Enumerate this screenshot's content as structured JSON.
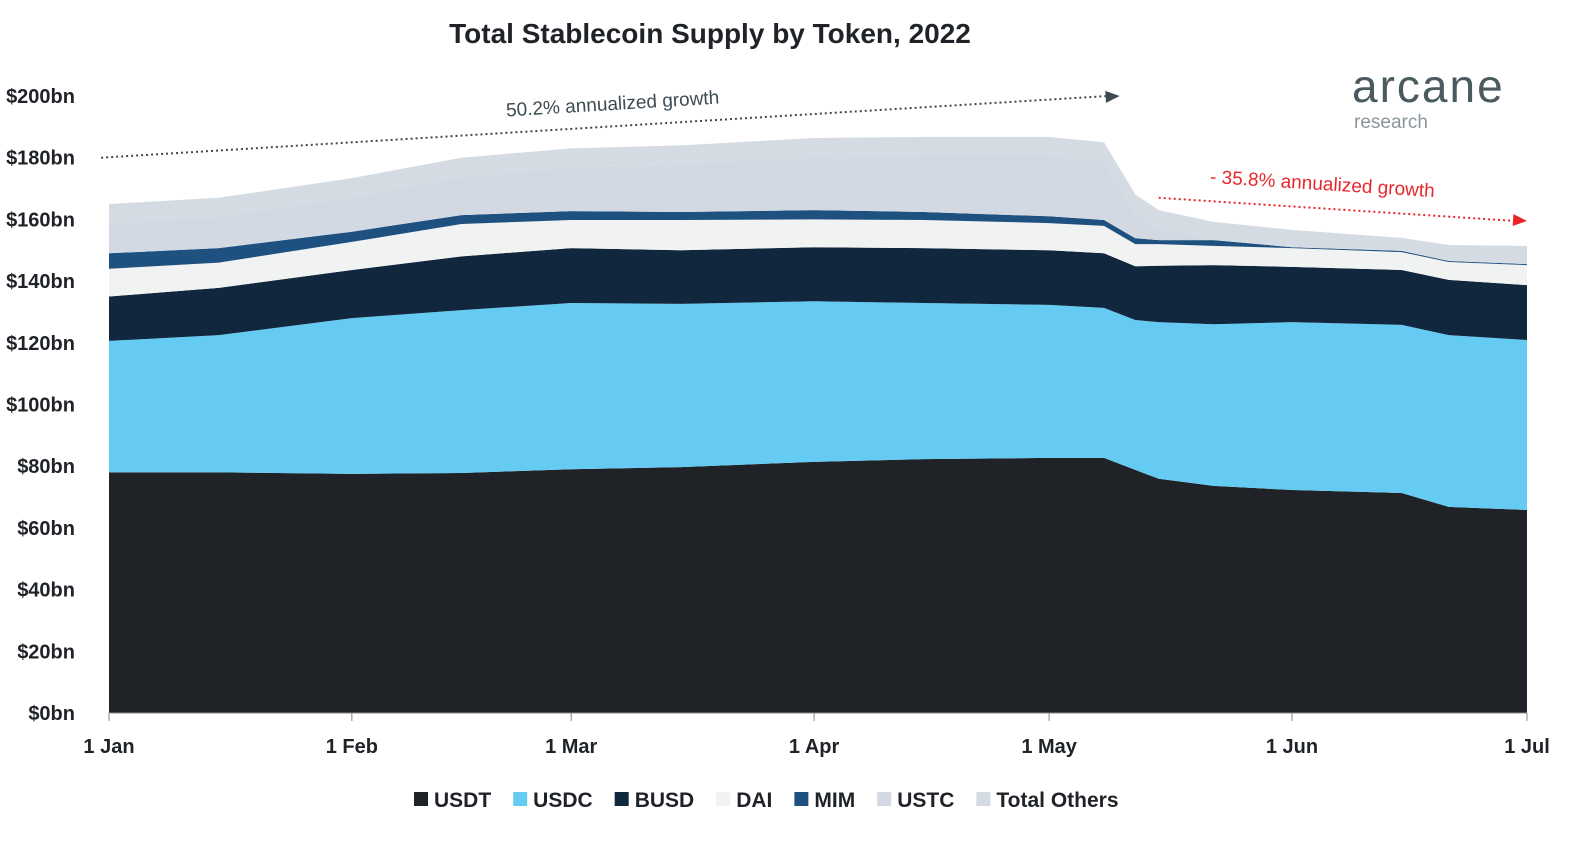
{
  "chart_data": {
    "type": "area",
    "stacked": true,
    "title": "Total Stablecoin Supply by Token, 2022",
    "xlabel": "",
    "ylabel": "",
    "ylim": [
      0,
      200
    ],
    "xlim": [
      "2022-01-01",
      "2022-07-01"
    ],
    "y_ticks": [
      "$0bn",
      "$20bn",
      "$40bn",
      "$60bn",
      "$80bn",
      "$100bn",
      "$120bn",
      "$140bn",
      "$160bn",
      "$180bn",
      "$200bn"
    ],
    "y_tick_values": [
      0,
      20,
      40,
      60,
      80,
      100,
      120,
      140,
      160,
      180,
      200
    ],
    "x_ticks": [
      {
        "label": "1 Jan",
        "date": "2022-01-01"
      },
      {
        "label": "1 Feb",
        "date": "2022-02-01"
      },
      {
        "label": "1 Mar",
        "date": "2022-03-01"
      },
      {
        "label": "1 Apr",
        "date": "2022-04-01"
      },
      {
        "label": "1 May",
        "date": "2022-05-01"
      },
      {
        "label": "1 Jun",
        "date": "2022-06-01"
      },
      {
        "label": "1 Jul",
        "date": "2022-07-01"
      }
    ],
    "grid": false,
    "legend_position": "bottom",
    "units": "billion USD",
    "x": [
      "2022-01-01",
      "2022-01-15",
      "2022-02-01",
      "2022-02-15",
      "2022-03-01",
      "2022-03-15",
      "2022-04-01",
      "2022-04-15",
      "2022-05-01",
      "2022-05-08",
      "2022-05-12",
      "2022-05-15",
      "2022-05-22",
      "2022-06-01",
      "2022-06-15",
      "2022-06-21",
      "2022-07-01"
    ],
    "series": [
      {
        "name": "USDT",
        "color": "#1f2328",
        "values": [
          78,
          78,
          77.5,
          77.8,
          79,
          79.7,
          81.4,
          82.3,
          82.7,
          82.7,
          78.8,
          75.9,
          73.6,
          72.3,
          71.3,
          66.8,
          65.8
        ]
      },
      {
        "name": "USDC",
        "color": "#66cbf3",
        "values": [
          42.6,
          44.5,
          50.5,
          52.8,
          53.9,
          52.9,
          52.1,
          50.6,
          49.6,
          48.6,
          48.6,
          50.8,
          52.4,
          54.4,
          54.5,
          55.7,
          55.1
        ]
      },
      {
        "name": "BUSD",
        "color": "#10273d",
        "values": [
          14.4,
          15.3,
          15.6,
          17.4,
          17.8,
          17.4,
          17.5,
          17.8,
          17.7,
          17.7,
          17.4,
          18.3,
          19.2,
          17.9,
          17.8,
          17.9,
          17.8
        ]
      },
      {
        "name": "DAI",
        "color": "#f1f2f2",
        "values": [
          9,
          8.2,
          9.1,
          10.5,
          9.1,
          9.8,
          9,
          9.1,
          8.8,
          8.9,
          7.2,
          7,
          6.2,
          6.1,
          5.8,
          5.8,
          6.5
        ]
      },
      {
        "name": "MIM",
        "color": "#1e5080",
        "values": [
          5,
          4.7,
          3.3,
          2.9,
          2.9,
          2.6,
          3,
          2.6,
          2.2,
          1.9,
          1.9,
          1.3,
          1.9,
          0.3,
          0.4,
          0.3,
          0.3
        ]
      },
      {
        "name": "USTC",
        "color": "#d2d9e2",
        "values": [
          10,
          10.3,
          11.4,
          12.6,
          14.3,
          15.6,
          17.4,
          18.3,
          19.7,
          19.2,
          8.2,
          3.7,
          0.5,
          0.3,
          0.2,
          0.2,
          0.2
        ]
      },
      {
        "name": "Total Others",
        "color": "#d5dbe3",
        "values": [
          6,
          6,
          6,
          6,
          6,
          6,
          6,
          6,
          6,
          6,
          6,
          6,
          5.4,
          5.3,
          4,
          5,
          5.7
        ]
      }
    ],
    "annotations": [
      {
        "text": "50.2% annualized growth",
        "color": "#3d4a52",
        "from": [
          "2021-12-31",
          180
        ],
        "to": [
          "2022-05-10",
          200
        ]
      },
      {
        "text": "- 35.8% annualized growth",
        "color": "#e8262a",
        "from": [
          "2022-05-15",
          167
        ],
        "to": [
          "2022-07-01",
          159.5
        ]
      }
    ]
  },
  "logo": {
    "name": "arcane",
    "sub": "research",
    "color": "#4a5a5e"
  }
}
